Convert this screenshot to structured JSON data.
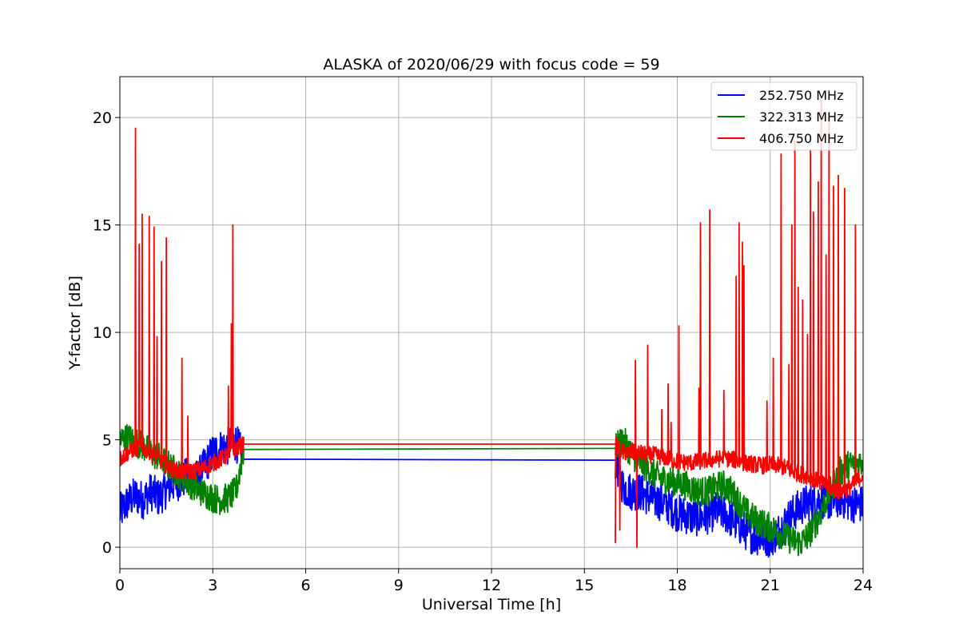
{
  "chart_data": {
    "type": "line",
    "title": "ALASKA of 2020/06/29 with focus code = 59",
    "xlabel": "Universal Time [h]",
    "ylabel": "Y-factor [dB]",
    "xlim": [
      0,
      24
    ],
    "ylim": [
      -1,
      21.9
    ],
    "x_ticks": [
      0,
      3,
      6,
      9,
      12,
      15,
      18,
      21,
      24
    ],
    "y_ticks": [
      0,
      5,
      10,
      15,
      20
    ],
    "grid": true,
    "legend_position": "top-right",
    "series": [
      {
        "name": "252.750 MHz",
        "color": "#0000ff",
        "x": [
          0,
          0.25,
          0.5,
          0.75,
          1.0,
          1.25,
          1.5,
          1.75,
          2.0,
          2.25,
          2.5,
          2.75,
          3.0,
          3.25,
          3.5,
          3.75,
          4.0,
          16.0,
          16.25,
          16.5,
          16.75,
          17.0,
          17.25,
          17.5,
          17.75,
          18.0,
          18.25,
          18.5,
          18.75,
          19.0,
          19.25,
          19.5,
          19.75,
          20.0,
          20.25,
          20.5,
          20.75,
          21.0,
          21.25,
          21.5,
          21.75,
          22.0,
          22.25,
          22.5,
          22.75,
          23.0,
          23.25,
          23.5,
          23.75,
          24.0
        ],
        "y": [
          1.6,
          2.1,
          2.4,
          2.2,
          2.6,
          2.3,
          2.7,
          3.0,
          3.1,
          3.4,
          3.2,
          3.8,
          4.4,
          4.6,
          4.7,
          4.9,
          4.1,
          4.05,
          2.8,
          2.6,
          2.6,
          2.4,
          2.2,
          2.1,
          1.9,
          1.6,
          1.5,
          1.4,
          1.4,
          1.5,
          1.7,
          1.6,
          1.3,
          1.0,
          0.7,
          0.5,
          0.5,
          0.4,
          0.7,
          1.2,
          1.6,
          1.9,
          2.1,
          2.2,
          2.2,
          2.1,
          2.3,
          2.1,
          2.0,
          2.0
        ],
        "noise": 0.9
      },
      {
        "name": "322.313 MHz",
        "color": "#008000",
        "x": [
          0,
          0.25,
          0.5,
          0.75,
          1.0,
          1.25,
          1.5,
          1.75,
          2.0,
          2.25,
          2.5,
          2.75,
          3.0,
          3.25,
          3.5,
          3.75,
          4.0,
          16.0,
          16.25,
          16.5,
          16.75,
          17.0,
          17.25,
          17.5,
          17.75,
          18.0,
          18.25,
          18.5,
          18.75,
          19.0,
          19.25,
          19.5,
          19.75,
          20.0,
          20.25,
          20.5,
          20.75,
          21.0,
          21.25,
          21.5,
          21.75,
          22.0,
          22.25,
          22.5,
          22.75,
          23.0,
          23.25,
          23.5,
          23.75,
          24.0
        ],
        "y": [
          5.0,
          5.1,
          4.9,
          4.7,
          4.4,
          4.2,
          3.9,
          3.6,
          3.3,
          3.0,
          2.7,
          2.5,
          2.3,
          2.2,
          2.3,
          2.6,
          4.55,
          4.6,
          5.0,
          4.4,
          4.0,
          3.7,
          3.4,
          3.2,
          3.1,
          3.0,
          2.9,
          2.7,
          2.6,
          2.6,
          2.8,
          2.9,
          2.6,
          2.1,
          1.6,
          1.3,
          1.1,
          0.9,
          0.7,
          0.5,
          0.3,
          0.2,
          0.6,
          1.2,
          2.0,
          2.8,
          3.5,
          3.8,
          3.9,
          4.0
        ],
        "noise": 0.7
      },
      {
        "name": "406.750 MHz",
        "color": "#ff0000",
        "x": [
          0,
          0.25,
          0.5,
          0.75,
          1.0,
          1.25,
          1.5,
          1.75,
          2.0,
          2.25,
          2.5,
          2.75,
          3.0,
          3.25,
          3.5,
          3.75,
          4.0,
          16.0,
          16.25,
          16.5,
          16.75,
          17.0,
          17.25,
          17.5,
          17.75,
          18.0,
          18.25,
          18.5,
          18.75,
          19.0,
          19.25,
          19.5,
          19.75,
          20.0,
          20.25,
          20.5,
          20.75,
          21.0,
          21.25,
          21.5,
          21.75,
          22.0,
          22.25,
          22.5,
          22.75,
          23.0,
          23.25,
          23.5,
          23.75,
          24.0
        ],
        "y": [
          4.1,
          4.4,
          4.6,
          4.6,
          4.4,
          4.1,
          3.8,
          3.6,
          3.5,
          3.5,
          3.6,
          3.7,
          3.9,
          4.1,
          4.3,
          4.6,
          4.8,
          4.8,
          4.4,
          4.4,
          4.4,
          4.3,
          4.3,
          4.2,
          4.1,
          4.0,
          3.95,
          3.95,
          4.0,
          4.05,
          4.1,
          4.15,
          4.1,
          4.0,
          3.9,
          3.85,
          3.8,
          3.85,
          3.8,
          3.7,
          3.5,
          3.4,
          3.3,
          3.1,
          2.9,
          2.7,
          2.6,
          2.7,
          3.0,
          3.4
        ],
        "noise": 0.4,
        "spikes": [
          [
            0.5,
            19.5
          ],
          [
            0.62,
            14.1
          ],
          [
            0.72,
            15.5
          ],
          [
            0.95,
            15.4
          ],
          [
            1.1,
            14.9
          ],
          [
            1.2,
            9.8
          ],
          [
            1.35,
            13.3
          ],
          [
            1.5,
            14.4
          ],
          [
            2.0,
            8.8
          ],
          [
            2.2,
            6.1
          ],
          [
            3.5,
            7.5
          ],
          [
            3.6,
            10.4
          ],
          [
            3.65,
            15.0
          ],
          [
            16.0,
            0.2
          ],
          [
            16.15,
            0.8
          ],
          [
            16.65,
            8.7
          ],
          [
            16.7,
            0.0
          ],
          [
            17.05,
            9.4
          ],
          [
            17.5,
            6.4
          ],
          [
            17.7,
            7.6
          ],
          [
            17.8,
            5.8
          ],
          [
            18.05,
            10.3
          ],
          [
            18.7,
            7.4
          ],
          [
            18.75,
            15.1
          ],
          [
            19.05,
            15.7
          ],
          [
            19.5,
            7.3
          ],
          [
            19.9,
            12.6
          ],
          [
            20.0,
            15.1
          ],
          [
            20.1,
            14.2
          ],
          [
            20.15,
            13.1
          ],
          [
            20.9,
            6.8
          ],
          [
            21.1,
            8.8
          ],
          [
            21.35,
            18.3
          ],
          [
            21.6,
            8.5
          ],
          [
            21.7,
            15.0
          ],
          [
            21.8,
            18.9
          ],
          [
            21.9,
            12.1
          ],
          [
            22.05,
            11.5
          ],
          [
            22.2,
            9.9
          ],
          [
            22.3,
            18.5
          ],
          [
            22.4,
            15.6
          ],
          [
            22.55,
            17.0
          ],
          [
            22.65,
            20.9
          ],
          [
            22.8,
            13.6
          ],
          [
            22.9,
            19.8
          ],
          [
            23.05,
            16.8
          ],
          [
            23.2,
            17.3
          ],
          [
            23.4,
            16.7
          ],
          [
            23.75,
            15.0
          ]
        ]
      }
    ]
  }
}
